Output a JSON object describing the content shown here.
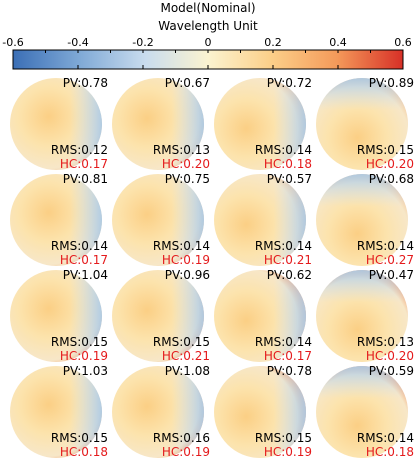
{
  "chart_data": {
    "type": "heatmap",
    "title": "Model(Nominal)",
    "subtitle": "Wavelength  Unit",
    "colorbar": {
      "range": [
        -0.6,
        0.6
      ],
      "tick_labels": [
        "-0.6",
        "-0.4",
        "-0.2",
        "0",
        "0.2",
        "0.4",
        "0.6"
      ],
      "tick_values": [
        -0.6,
        -0.4,
        -0.2,
        0,
        0.2,
        0.4,
        0.6
      ],
      "colors": [
        "#3b6fb6",
        "#7fa9d6",
        "#c9dcee",
        "#fbf3d0",
        "#fcd08a",
        "#f49a5a",
        "#d73027"
      ]
    },
    "layout": {
      "rows": 4,
      "cols": 4
    },
    "panels": [
      {
        "pv": "PV:0.78",
        "rms": "RMS:0.12",
        "hc": "HC:0.17"
      },
      {
        "pv": "PV:0.67",
        "rms": "RMS:0.13",
        "hc": "HC:0.20"
      },
      {
        "pv": "PV:0.72",
        "rms": "RMS:0.14",
        "hc": "HC:0.18"
      },
      {
        "pv": "PV:0.89",
        "rms": "RMS:0.15",
        "hc": "HC:0.20"
      },
      {
        "pv": "PV:0.81",
        "rms": "RMS:0.14",
        "hc": "HC:0.17"
      },
      {
        "pv": "PV:0.75",
        "rms": "RMS:0.14",
        "hc": "HC:0.19"
      },
      {
        "pv": "PV:0.57",
        "rms": "RMS:0.14",
        "hc": "HC:0.21"
      },
      {
        "pv": "PV:0.68",
        "rms": "RMS:0.14",
        "hc": "HC:0.27"
      },
      {
        "pv": "PV:1.04",
        "rms": "RMS:0.15",
        "hc": "HC:0.19"
      },
      {
        "pv": "PV:0.96",
        "rms": "RMS:0.15",
        "hc": "HC:0.21"
      },
      {
        "pv": "PV:0.62",
        "rms": "RMS:0.14",
        "hc": "HC:0.17"
      },
      {
        "pv": "PV:0.47",
        "rms": "RMS:0.13",
        "hc": "HC:0.20"
      },
      {
        "pv": "PV:1.03",
        "rms": "RMS:0.15",
        "hc": "HC:0.18"
      },
      {
        "pv": "PV:1.08",
        "rms": "RMS:0.16",
        "hc": "HC:0.19"
      },
      {
        "pv": "PV:0.78",
        "rms": "RMS:0.15",
        "hc": "HC:0.19"
      },
      {
        "pv": "PV:0.59",
        "rms": "RMS:0.14",
        "hc": "HC:0.18"
      }
    ]
  }
}
